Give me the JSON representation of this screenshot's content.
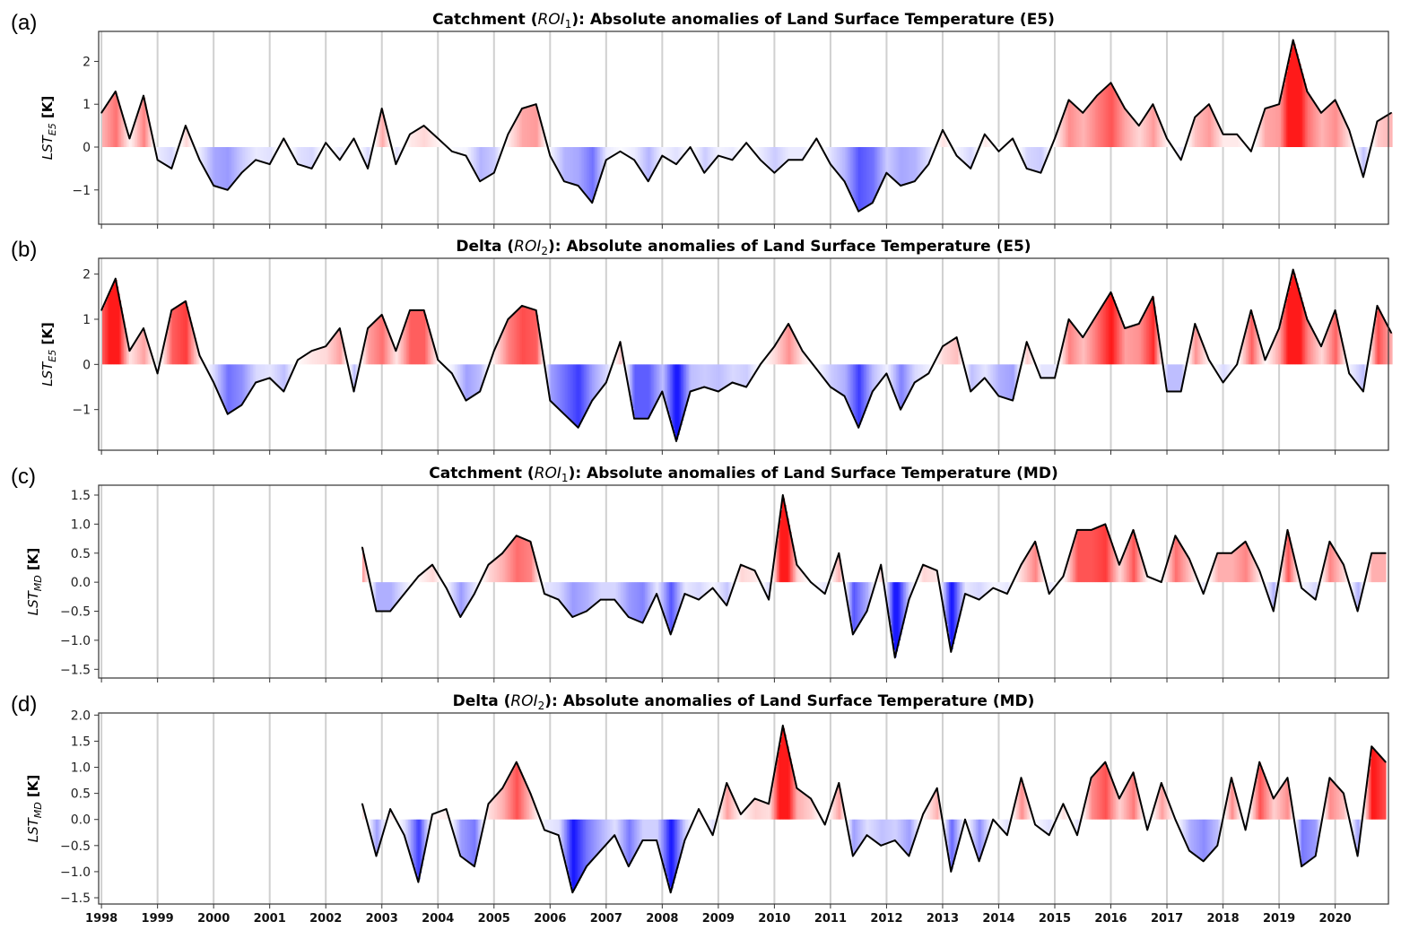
{
  "chart_data": [
    {
      "type": "area",
      "panel_label": "(a)",
      "title": {
        "prefix": "Catchment (",
        "roi": "ROI",
        "roi_sub": "1",
        "suffix": "): Absolute anomalies of Land Surface Temperature (E5)"
      },
      "ylabel": {
        "main": "LST",
        "sub": "E5",
        "unit": " [K]"
      },
      "ylim": [
        -1.8,
        2.7
      ],
      "yticks": [
        {
          "v": -1,
          "label": "−1"
        },
        {
          "v": 0,
          "label": "0"
        },
        {
          "v": 1,
          "label": "1"
        },
        {
          "v": 2,
          "label": "2"
        }
      ],
      "x_start": 1998.0,
      "x_step": 0.25,
      "values": [
        0.8,
        1.3,
        0.2,
        1.2,
        -0.3,
        -0.5,
        0.5,
        -0.3,
        -0.9,
        -1.0,
        -0.6,
        -0.3,
        -0.4,
        0.2,
        -0.4,
        -0.5,
        0.1,
        -0.3,
        0.2,
        -0.5,
        0.9,
        -0.4,
        0.3,
        0.5,
        0.2,
        -0.1,
        -0.2,
        -0.8,
        -0.6,
        0.3,
        0.9,
        1.0,
        -0.2,
        -0.8,
        -0.9,
        -1.3,
        -0.3,
        -0.1,
        -0.3,
        -0.8,
        -0.2,
        -0.4,
        0.0,
        -0.6,
        -0.2,
        -0.3,
        0.1,
        -0.3,
        -0.6,
        -0.3,
        -0.3,
        0.2,
        -0.4,
        -0.8,
        -1.5,
        -1.3,
        -0.6,
        -0.9,
        -0.8,
        -0.4,
        0.4,
        -0.2,
        -0.5,
        0.3,
        -0.1,
        0.2,
        -0.5,
        -0.6,
        0.2,
        1.1,
        0.8,
        1.2,
        1.5,
        0.9,
        0.5,
        1.0,
        0.2,
        -0.3,
        0.7,
        1.0,
        0.3,
        0.3,
        -0.1,
        0.9,
        1.0,
        2.5,
        1.3,
        0.8,
        1.1,
        0.4,
        -0.7,
        0.6,
        0.8
      ]
    },
    {
      "type": "area",
      "panel_label": "(b)",
      "title": {
        "prefix": "Delta (",
        "roi": "ROI",
        "roi_sub": "2",
        "suffix": "): Absolute anomalies of Land Surface Temperature (E5)"
      },
      "ylabel": {
        "main": "LST",
        "sub": "E5",
        "unit": " [K]"
      },
      "ylim": [
        -1.9,
        2.35
      ],
      "yticks": [
        {
          "v": -1,
          "label": "−1"
        },
        {
          "v": 0,
          "label": "0"
        },
        {
          "v": 1,
          "label": "1"
        },
        {
          "v": 2,
          "label": "2"
        }
      ],
      "x_start": 1998.0,
      "x_step": 0.25,
      "values": [
        1.2,
        1.9,
        0.3,
        0.8,
        -0.2,
        1.2,
        1.4,
        0.2,
        -0.4,
        -1.1,
        -0.9,
        -0.4,
        -0.3,
        -0.6,
        0.1,
        0.3,
        0.4,
        0.8,
        -0.6,
        0.8,
        1.1,
        0.3,
        1.2,
        1.2,
        0.1,
        -0.2,
        -0.8,
        -0.6,
        0.3,
        1.0,
        1.3,
        1.2,
        -0.8,
        -1.1,
        -1.4,
        -0.8,
        -0.4,
        0.5,
        -1.2,
        -1.2,
        -0.6,
        -1.7,
        -0.6,
        -0.5,
        -0.6,
        -0.4,
        -0.5,
        0.0,
        0.4,
        0.9,
        0.3,
        -0.1,
        -0.5,
        -0.7,
        -1.4,
        -0.6,
        -0.2,
        -1.0,
        -0.4,
        -0.2,
        0.4,
        0.6,
        -0.6,
        -0.3,
        -0.7,
        -0.8,
        0.5,
        -0.3,
        -0.3,
        1.0,
        0.6,
        1.1,
        1.6,
        0.8,
        0.9,
        1.5,
        -0.6,
        -0.6,
        0.9,
        0.1,
        -0.4,
        0.0,
        1.2,
        0.1,
        0.8,
        2.1,
        1.0,
        0.4,
        1.2,
        -0.2,
        -0.6,
        1.3,
        0.7
      ]
    },
    {
      "type": "area",
      "panel_label": "(c)",
      "title": {
        "prefix": "Catchment (",
        "roi": "ROI",
        "roi_sub": "1",
        "suffix": "): Absolute anomalies of Land Surface Temperature (MD)"
      },
      "ylabel": {
        "main": "LST",
        "sub": "MD",
        "unit": " [K]"
      },
      "ylim": [
        -1.65,
        1.67
      ],
      "yticks": [
        {
          "v": -1.5,
          "label": "−1.5"
        },
        {
          "v": -1.0,
          "label": "−1.0"
        },
        {
          "v": -0.5,
          "label": "−0.5"
        },
        {
          "v": 0,
          "label": "0.0"
        },
        {
          "v": 0.5,
          "label": "0.5"
        },
        {
          "v": 1.0,
          "label": "1.0"
        },
        {
          "v": 1.5,
          "label": "1.5"
        }
      ],
      "x_start": 2002.65,
      "x_step": 0.25,
      "values": [
        0.6,
        -0.5,
        -0.5,
        -0.2,
        0.1,
        0.3,
        -0.1,
        -0.6,
        -0.2,
        0.3,
        0.5,
        0.8,
        0.7,
        -0.2,
        -0.3,
        -0.6,
        -0.5,
        -0.3,
        -0.3,
        -0.6,
        -0.7,
        -0.2,
        -0.9,
        -0.2,
        -0.3,
        -0.1,
        -0.4,
        0.3,
        0.2,
        -0.3,
        1.5,
        0.3,
        0.0,
        -0.2,
        0.5,
        -0.9,
        -0.5,
        0.3,
        -1.3,
        -0.3,
        0.3,
        0.2,
        -1.2,
        -0.2,
        -0.3,
        -0.1,
        -0.2,
        0.3,
        0.7,
        -0.2,
        0.1,
        0.9,
        0.9,
        1.0,
        0.3,
        0.9,
        0.1,
        0.0,
        0.8,
        0.4,
        -0.2,
        0.5,
        0.5,
        0.7,
        0.2,
        -0.5,
        0.9,
        -0.1,
        -0.3,
        0.7,
        0.3,
        -0.5,
        0.5,
        0.5
      ]
    },
    {
      "type": "area",
      "panel_label": "(d)",
      "title": {
        "prefix": "Delta (",
        "roi": "ROI",
        "roi_sub": "2",
        "suffix": "): Absolute anomalies of Land Surface Temperature (MD)"
      },
      "ylabel": {
        "main": "LST",
        "sub": "MD",
        "unit": " [K]"
      },
      "ylim": [
        -1.62,
        2.04
      ],
      "yticks": [
        {
          "v": -1.5,
          "label": "−1.5"
        },
        {
          "v": -1.0,
          "label": "−1.0"
        },
        {
          "v": -0.5,
          "label": "−0.5"
        },
        {
          "v": 0,
          "label": "0.0"
        },
        {
          "v": 0.5,
          "label": "0.5"
        },
        {
          "v": 1.0,
          "label": "1.0"
        },
        {
          "v": 1.5,
          "label": "1.5"
        },
        {
          "v": 2.0,
          "label": "2.0"
        }
      ],
      "x_start": 2002.65,
      "x_step": 0.25,
      "values": [
        0.3,
        -0.7,
        0.2,
        -0.3,
        -1.2,
        0.1,
        0.2,
        -0.7,
        -0.9,
        0.3,
        0.6,
        1.1,
        0.5,
        -0.2,
        -0.3,
        -1.4,
        -0.9,
        -0.6,
        -0.3,
        -0.9,
        -0.4,
        -0.4,
        -1.4,
        -0.4,
        0.2,
        -0.3,
        0.7,
        0.1,
        0.4,
        0.3,
        1.8,
        0.6,
        0.4,
        -0.1,
        0.7,
        -0.7,
        -0.3,
        -0.5,
        -0.4,
        -0.7,
        0.1,
        0.6,
        -1.0,
        0.0,
        -0.8,
        0.0,
        -0.3,
        0.8,
        -0.1,
        -0.3,
        0.3,
        -0.3,
        0.8,
        1.1,
        0.4,
        0.9,
        -0.2,
        0.7,
        0.0,
        -0.6,
        -0.8,
        -0.5,
        0.8,
        -0.2,
        1.1,
        0.4,
        0.8,
        -0.9,
        -0.7,
        0.8,
        0.5,
        -0.7,
        1.4,
        1.1
      ]
    }
  ],
  "x_axis": {
    "range": [
      1997.95,
      2020.95
    ],
    "tick_labels": [
      "1998",
      "1999",
      "2000",
      "2001",
      "2002",
      "2003",
      "2004",
      "2005",
      "2006",
      "2007",
      "2008",
      "2009",
      "2010",
      "2011",
      "2012",
      "2013",
      "2014",
      "2015",
      "2016",
      "2017",
      "2018",
      "2019",
      "2020"
    ],
    "grid": true
  },
  "colors": {
    "positive": "#ff1a1a",
    "negative": "#1a1aff",
    "line": "#000000",
    "grid": "#d0d0d0"
  }
}
